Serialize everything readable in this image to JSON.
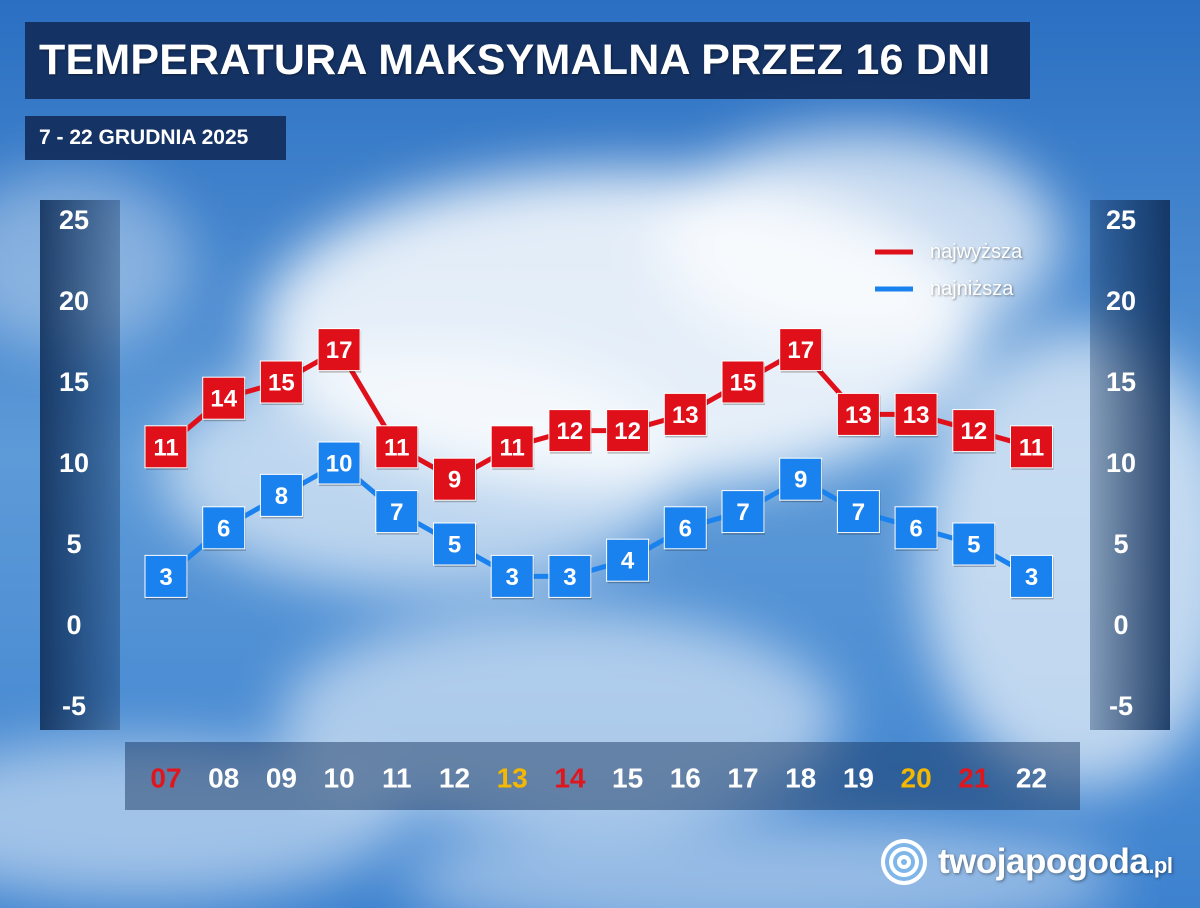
{
  "header": {
    "title": "TEMPERATURA MAKSYMALNA PRZEZ 16 DNI",
    "subtitle": "7 - 22 GRUDNIA 2025"
  },
  "brand": {
    "name": "twojapogoda",
    "tld": ".pl"
  },
  "chart_data": {
    "type": "line",
    "title": "TEMPERATURA MAKSYMALNA PRZEZ 16 DNI",
    "subtitle": "7 - 22 GRUDNIA 2025",
    "categories": [
      "07",
      "08",
      "09",
      "10",
      "11",
      "12",
      "13",
      "14",
      "15",
      "16",
      "17",
      "18",
      "19",
      "20",
      "21",
      "22"
    ],
    "category_colors": [
      "#e0161e",
      "#ffffff",
      "#ffffff",
      "#ffffff",
      "#ffffff",
      "#ffffff",
      "#f5b800",
      "#e0161e",
      "#ffffff",
      "#ffffff",
      "#ffffff",
      "#ffffff",
      "#ffffff",
      "#f5b800",
      "#e0161e",
      "#ffffff"
    ],
    "series": [
      {
        "name": "najwyższa",
        "color": "#e0101a",
        "values": [
          11,
          14,
          15,
          17,
          11,
          9,
          11,
          12,
          12,
          13,
          15,
          17,
          13,
          13,
          12,
          11
        ]
      },
      {
        "name": "najniższa",
        "color": "#1a82ee",
        "values": [
          3,
          6,
          8,
          10,
          7,
          5,
          3,
          3,
          4,
          6,
          7,
          9,
          7,
          6,
          5,
          3
        ]
      }
    ],
    "y_ticks": [
      25,
      20,
      15,
      10,
      5,
      0,
      -5
    ],
    "ylim": [
      -5,
      25
    ],
    "legend_position": "top-right",
    "grid": false
  }
}
